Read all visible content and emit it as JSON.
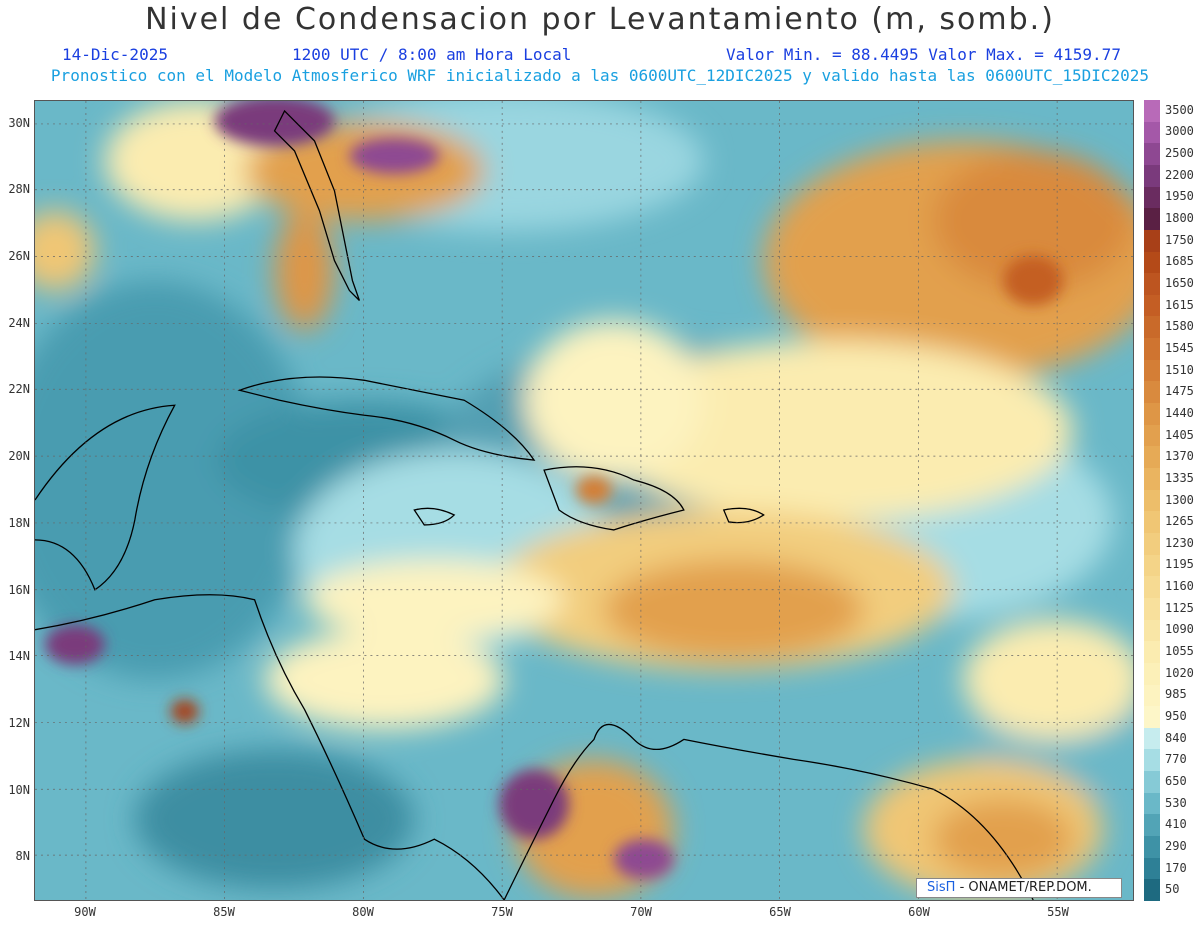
{
  "title": "Nivel de Condensacion por Levantamiento (m, somb.)",
  "date": "14-Dic-2025",
  "time": "1200 UTC / 8:00 am Hora Local",
  "values": "Valor Min. = 88.4495  Valor Max. = 4159.77",
  "info": "Pronostico con el Modelo Atmosferico WRF inicializado a las 0600UTC_12DIC2025 y valido hasta las  0600UTC_15DIC2025",
  "credit": {
    "brand": "SisΠ",
    "org": "- ONAMET/REP.DOM."
  },
  "map": {
    "lat_labels": [
      "30N",
      "28N",
      "26N",
      "24N",
      "22N",
      "20N",
      "18N",
      "16N",
      "14N",
      "12N",
      "10N",
      "8N"
    ],
    "lon_labels": [
      "90W",
      "85W",
      "80W",
      "75W",
      "70W",
      "65W",
      "60W",
      "55W"
    ]
  },
  "colorbar": {
    "levels": [
      "3500",
      "3000",
      "2500",
      "2200",
      "1950",
      "1800",
      "1750",
      "1685",
      "1650",
      "1615",
      "1580",
      "1545",
      "1510",
      "1475",
      "1440",
      "1405",
      "1370",
      "1335",
      "1300",
      "1265",
      "1230",
      "1195",
      "1160",
      "1125",
      "1090",
      "1055",
      "1020",
      "985",
      "950",
      "840",
      "770",
      "650",
      "530",
      "410",
      "290",
      "170",
      "50"
    ],
    "colors": [
      "#b86ab8",
      "#a458a8",
      "#8e4892",
      "#7a3a7c",
      "#6a2c60",
      "#5a2044",
      "#a84018",
      "#b44a18",
      "#bd5520",
      "#c45e24",
      "#c96a2a",
      "#cf7430",
      "#d47e36",
      "#d98a3e",
      "#de9646",
      "#e2a04e",
      "#e6aa56",
      "#eab460",
      "#edbe6a",
      "#f0c674",
      "#f2cd7e",
      "#f4d488",
      "#f6da92",
      "#f8e09c",
      "#f9e6a6",
      "#fbecb0",
      "#fcf0b8",
      "#fdf3c0",
      "#fdf6c8",
      "#c6ecee",
      "#a6dde4",
      "#86cad6",
      "#6ab8c8",
      "#52a4b6",
      "#3e92a6",
      "#2e8096",
      "#1e6a80"
    ]
  }
}
